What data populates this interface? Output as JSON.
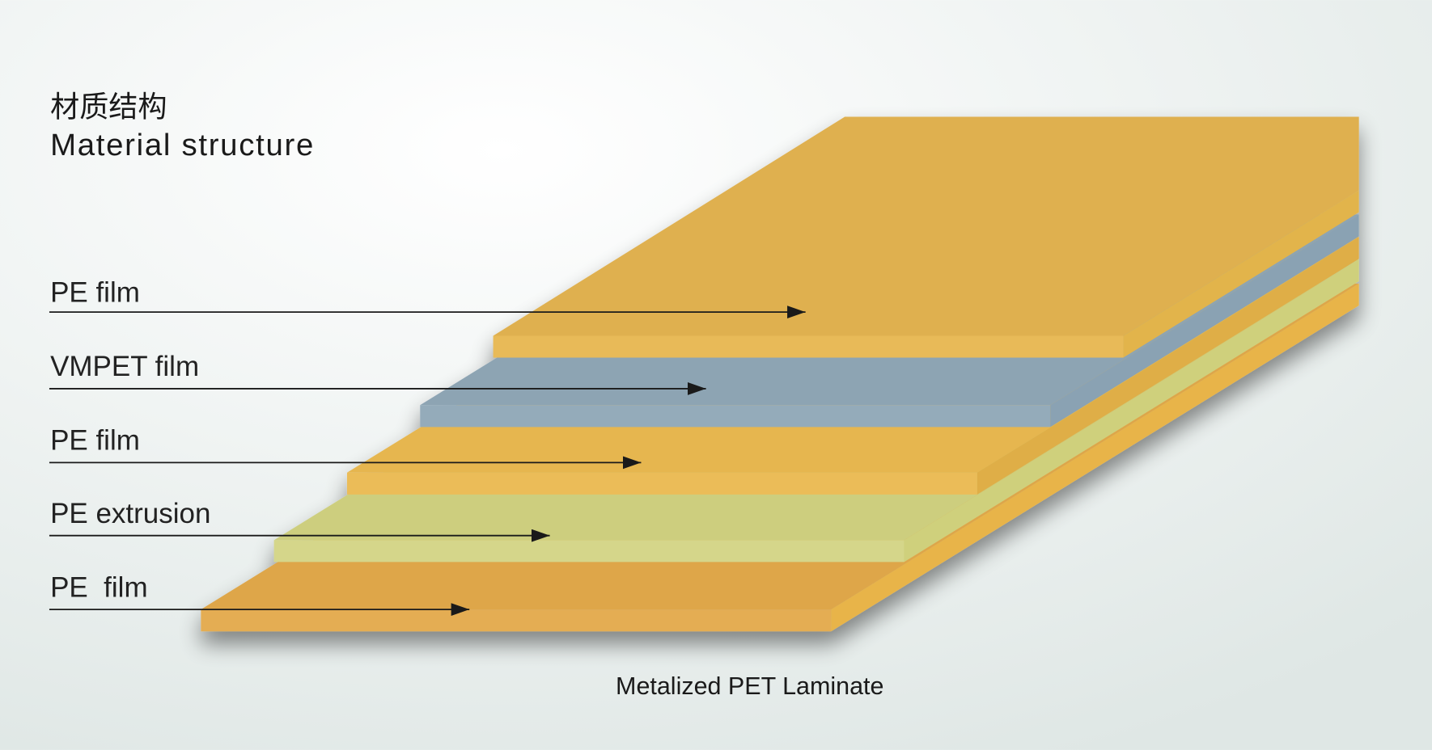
{
  "header": {
    "title_zh": "材质结构",
    "title_en": "Material structure"
  },
  "layers": [
    {
      "label": "PE film"
    },
    {
      "label": "VMPET film"
    },
    {
      "label": "PE film"
    },
    {
      "label": "PE extrusion"
    },
    {
      "label": "PE  film"
    }
  ],
  "caption": "Metalized PET Laminate"
}
